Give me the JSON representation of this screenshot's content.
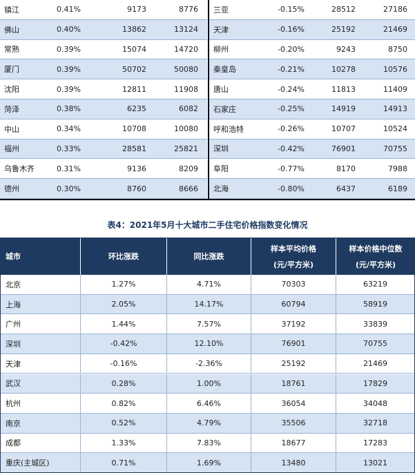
{
  "top_table": {
    "left_rows": [
      {
        "city": "镇江",
        "mom": "0.41%",
        "p1": "9173",
        "p2": "8776"
      },
      {
        "city": "佛山",
        "mom": "0.40%",
        "p1": "13862",
        "p2": "13124"
      },
      {
        "city": "常熟",
        "mom": "0.39%",
        "p1": "15074",
        "p2": "14720"
      },
      {
        "city": "厦门",
        "mom": "0.39%",
        "p1": "50702",
        "p2": "50080"
      },
      {
        "city": "沈阳",
        "mom": "0.39%",
        "p1": "12811",
        "p2": "11908"
      },
      {
        "city": "菏泽",
        "mom": "0.38%",
        "p1": "6235",
        "p2": "6082"
      },
      {
        "city": "中山",
        "mom": "0.34%",
        "p1": "10708",
        "p2": "10080"
      },
      {
        "city": "福州",
        "mom": "0.33%",
        "p1": "28581",
        "p2": "25821"
      },
      {
        "city": "乌鲁木齐",
        "mom": "0.31%",
        "p1": "9136",
        "p2": "8209"
      },
      {
        "city": "德州",
        "mom": "0.30%",
        "p1": "8760",
        "p2": "8666"
      }
    ],
    "right_rows": [
      {
        "city": "三亚",
        "mom": "-0.15%",
        "p1": "28512",
        "p2": "27186"
      },
      {
        "city": "天津",
        "mom": "-0.16%",
        "p1": "25192",
        "p2": "21469"
      },
      {
        "city": "柳州",
        "mom": "-0.20%",
        "p1": "9243",
        "p2": "8750"
      },
      {
        "city": "秦皇岛",
        "mom": "-0.21%",
        "p1": "10278",
        "p2": "10576"
      },
      {
        "city": "唐山",
        "mom": "-0.24%",
        "p1": "11813",
        "p2": "11409"
      },
      {
        "city": "石家庄",
        "mom": "-0.25%",
        "p1": "14919",
        "p2": "14913"
      },
      {
        "city": "呼和浩特",
        "mom": "-0.26%",
        "p1": "10707",
        "p2": "10524"
      },
      {
        "city": "深圳",
        "mom": "-0.42%",
        "p1": "76901",
        "p2": "70755"
      },
      {
        "city": "阜阳",
        "mom": "-0.77%",
        "p1": "8170",
        "p2": "7988"
      },
      {
        "city": "北海",
        "mom": "-0.80%",
        "p1": "6437",
        "p2": "6189"
      }
    ]
  },
  "caption": "表4：2021年5月十大城市二手住宅价格指数变化情况",
  "bottom_table": {
    "headers": {
      "city": "城市",
      "mom": "环比涨跌",
      "yoy": "同比涨跌",
      "avg_line1": "样本平均价格",
      "avg_line2": "(元/平方米)",
      "med_line1": "样本价格中位数",
      "med_line2": "(元/平方米)"
    },
    "rows": [
      {
        "city": "北京",
        "mom": "1.27%",
        "yoy": "4.71%",
        "avg": "70303",
        "med": "63219"
      },
      {
        "city": "上海",
        "mom": "2.05%",
        "yoy": "14.17%",
        "avg": "60794",
        "med": "58919"
      },
      {
        "city": "广州",
        "mom": "1.44%",
        "yoy": "7.57%",
        "avg": "37192",
        "med": "33839"
      },
      {
        "city": "深圳",
        "mom": "-0.42%",
        "yoy": "12.10%",
        "avg": "76901",
        "med": "70755"
      },
      {
        "city": "天津",
        "mom": "-0.16%",
        "yoy": "-2.36%",
        "avg": "25192",
        "med": "21469"
      },
      {
        "city": "武汉",
        "mom": "0.28%",
        "yoy": "1.00%",
        "avg": "18761",
        "med": "17829"
      },
      {
        "city": "杭州",
        "mom": "0.82%",
        "yoy": "6.46%",
        "avg": "36054",
        "med": "34048"
      },
      {
        "city": "南京",
        "mom": "0.52%",
        "yoy": "4.79%",
        "avg": "35506",
        "med": "32718"
      },
      {
        "city": "成都",
        "mom": "1.33%",
        "yoy": "7.83%",
        "avg": "18677",
        "med": "17283"
      },
      {
        "city": "重庆(主城区)",
        "mom": "0.71%",
        "yoy": "1.69%",
        "avg": "13480",
        "med": "13021"
      }
    ]
  },
  "colors": {
    "header_bg": "#1f3a60",
    "stripe": "#d5e3f3",
    "border": "#9bb3d4"
  }
}
